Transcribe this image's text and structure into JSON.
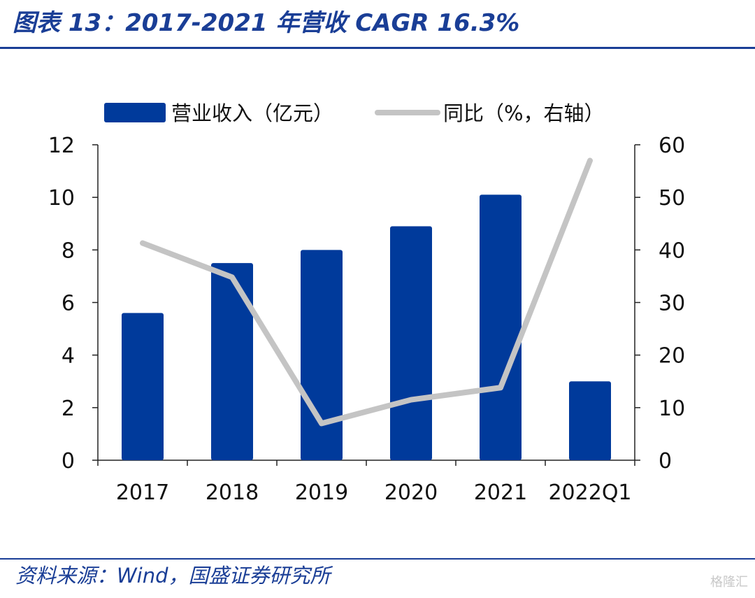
{
  "title": "图表 13：2017-2021 年营收 CAGR 16.3%",
  "source": "资料来源：Wind，国盛证券研究所",
  "watermark": "格隆汇",
  "colors": {
    "accent": "#1a3e96",
    "bar": "#003a9b",
    "line": "#c4c4c4"
  },
  "chart_data": {
    "type": "bar",
    "categories": [
      "2017",
      "2018",
      "2019",
      "2020",
      "2021",
      "2022Q1"
    ],
    "series": [
      {
        "name": "营业收入（亿元）",
        "type": "bar",
        "axis": "left",
        "values": [
          5.6,
          7.5,
          8.0,
          8.9,
          10.1,
          3.0
        ]
      },
      {
        "name": "同比（%，右轴）",
        "type": "line",
        "axis": "right",
        "values": [
          41.3,
          34.8,
          7.0,
          11.5,
          13.8,
          57.0
        ]
      }
    ],
    "ylim_left": [
      0,
      12
    ],
    "yticks_left": [
      0,
      2,
      4,
      6,
      8,
      10,
      12
    ],
    "ylim_right": [
      0,
      60
    ],
    "yticks_right": [
      0,
      10,
      20,
      30,
      40,
      50,
      60
    ],
    "grid": false,
    "legend_position": "top"
  }
}
